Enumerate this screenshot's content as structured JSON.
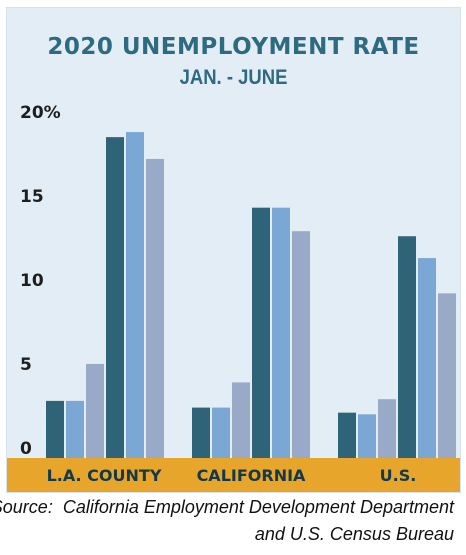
{
  "chart_data": {
    "type": "bar",
    "title": "2020 UNEMPLOYMENT RATE",
    "subtitle": "JAN. - JUNE",
    "categories": [
      "L.A. COUNTY",
      "CALIFORNIA",
      "U.S."
    ],
    "series": [
      {
        "values": [
          3.4,
          3.0,
          2.7
        ]
      },
      {
        "values": [
          3.4,
          3.0,
          2.6
        ]
      },
      {
        "values": [
          5.6,
          4.5,
          3.5
        ]
      },
      {
        "values": [
          19.1,
          14.9,
          13.2
        ]
      },
      {
        "values": [
          19.4,
          14.9,
          11.9
        ]
      },
      {
        "values": [
          17.8,
          13.5,
          9.8
        ]
      }
    ],
    "y_tick_labels": [
      "0",
      "5",
      "10",
      "15",
      "20%"
    ],
    "y_tick_values": [
      0,
      5,
      10,
      15,
      20
    ],
    "ylim": [
      0,
      20
    ],
    "grid": false,
    "legend": "none",
    "colors": {
      "series": [
        "#2f6478",
        "#7ba7d4",
        "#98aac8",
        "#2f6478",
        "#7ba7d4",
        "#98aac8"
      ],
      "baseline_band": "#e7a52b",
      "background": "#e3edf6",
      "title": "#2e6a80"
    }
  },
  "source_line1": "Source:  California Employment Development Department",
  "source_line2": "and U.S. Census Bureau"
}
